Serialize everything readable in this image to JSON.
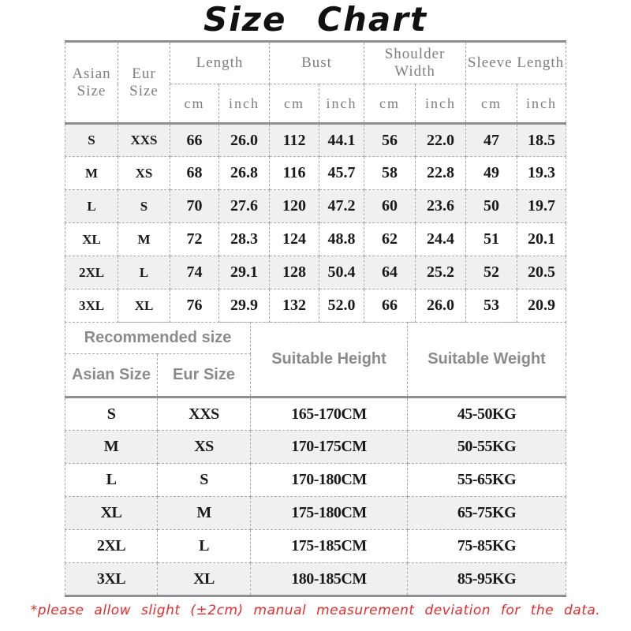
{
  "title": "Size Chart",
  "footnote": "*please allow slight (±2cm) manual measurement deviation for the data.",
  "colors": {
    "note_red": "#e62b2b",
    "row_shade": "#f0f0f0",
    "line_gray": "#8f8f8f",
    "header_gray": "#7e7e7e"
  },
  "chart_data": [
    {
      "type": "table",
      "name": "size-measurements",
      "group_labels": [
        "Asian Size",
        "Eur Size",
        "Length",
        "Bust",
        "Shoulder Width",
        "Sleeve Length"
      ],
      "units": [
        "cm",
        "inch",
        "cm",
        "inch",
        "cm",
        "inch",
        "cm",
        "inch"
      ],
      "rows": [
        [
          "S",
          "XXS",
          "66",
          "26.0",
          "112",
          "44.1",
          "56",
          "22.0",
          "47",
          "18.5"
        ],
        [
          "M",
          "XS",
          "68",
          "26.8",
          "116",
          "45.7",
          "58",
          "22.8",
          "49",
          "19.3"
        ],
        [
          "L",
          "S",
          "70",
          "27.6",
          "120",
          "47.2",
          "60",
          "23.6",
          "50",
          "19.7"
        ],
        [
          "XL",
          "M",
          "72",
          "28.3",
          "124",
          "48.8",
          "62",
          "24.4",
          "51",
          "20.1"
        ],
        [
          "2XL",
          "L",
          "74",
          "29.1",
          "128",
          "50.4",
          "64",
          "25.2",
          "52",
          "20.5"
        ],
        [
          "3XL",
          "XL",
          "76",
          "29.9",
          "132",
          "52.0",
          "66",
          "26.0",
          "53",
          "20.9"
        ]
      ]
    },
    {
      "type": "table",
      "name": "recommended-size",
      "group_header": "Recommended size",
      "headers": [
        "Asian Size",
        "Eur Size",
        "Suitable Height",
        "Suitable Weight"
      ],
      "rows": [
        [
          "S",
          "XXS",
          "165-170CM",
          "45-50KG"
        ],
        [
          "M",
          "XS",
          "170-175CM",
          "50-55KG"
        ],
        [
          "L",
          "S",
          "170-180CM",
          "55-65KG"
        ],
        [
          "XL",
          "M",
          "175-180CM",
          "65-75KG"
        ],
        [
          "2XL",
          "L",
          "175-185CM",
          "75-85KG"
        ],
        [
          "3XL",
          "XL",
          "180-185CM",
          "85-95KG"
        ]
      ]
    }
  ]
}
